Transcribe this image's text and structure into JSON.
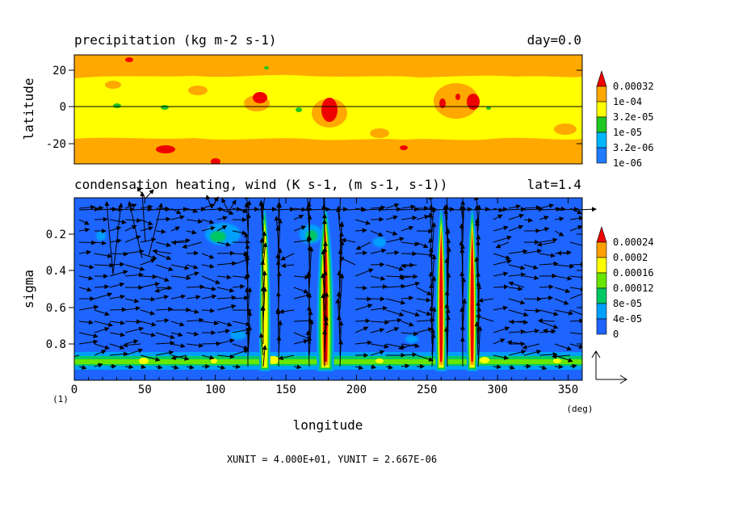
{
  "chart_data": [
    {
      "type": "heatmap",
      "title": "precipitation (kg m-2 s-1)",
      "title_right": "day=0.0",
      "ylabel": "latitude",
      "xlim": [
        0,
        360
      ],
      "ylim": [
        -30,
        30
      ],
      "yticks": [
        20,
        0,
        -20
      ],
      "colorbar": {
        "colors": [
          "#1e7aff",
          "#00b7ff",
          "#21c721",
          "#ffff00",
          "#ffa800",
          "#ee0000"
        ],
        "labels": [
          "0.00032",
          "1e-04",
          "3.2e-05",
          "1e-05",
          "3.2e-06",
          "1e-06"
        ]
      }
    },
    {
      "type": "heatmap",
      "title": "condensation heating, wind (K s-1, (m s-1, s-1))",
      "title_right": "lat=1.4",
      "xlabel": "longitude",
      "ylabel": "sigma",
      "xlim": [
        0,
        360
      ],
      "ylim": [
        1.0,
        0.0
      ],
      "xticks": [
        0,
        50,
        100,
        150,
        200,
        250,
        300,
        350
      ],
      "yticks": [
        0.2,
        0.4,
        0.6,
        0.8
      ],
      "x_unit_label": "(deg)",
      "colorbar": {
        "colors": [
          "#1e64ff",
          "#00a0ff",
          "#00c864",
          "#66e600",
          "#ffff00",
          "#ffa000",
          "#ee0000"
        ],
        "labels": [
          "0.00024",
          "0.0002",
          "0.00016",
          "0.00012",
          "8e-05",
          "4e-05",
          "0"
        ]
      },
      "heating_columns_lon": [
        135,
        178,
        260,
        282
      ]
    }
  ],
  "frame_label": "(1)",
  "footer": "XUNIT = 4.000E+01, YUNIT = 2.667E-06"
}
